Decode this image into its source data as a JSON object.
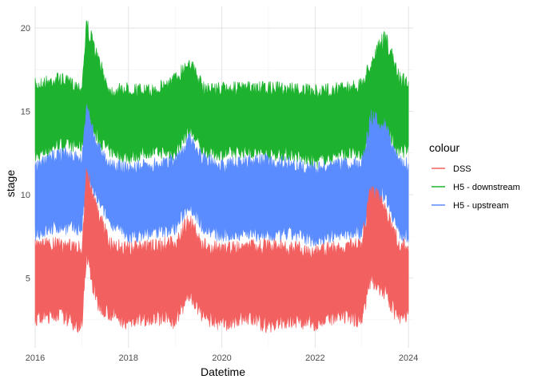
{
  "chart_data": {
    "type": "area",
    "xlabel": "Datetime",
    "ylabel": "stage",
    "xlim": [
      2016,
      2024.1
    ],
    "ylim": [
      0.8,
      21.3
    ],
    "x_ticks": [
      2016,
      2018,
      2020,
      2022,
      2024
    ],
    "x_tick_labels": [
      "2016",
      "2018",
      "2020",
      "2022",
      "2024"
    ],
    "y_ticks": [
      5,
      10,
      15,
      20
    ],
    "y_tick_labels": [
      "5",
      "10",
      "15",
      "20"
    ],
    "grid": true,
    "legend": {
      "title": "colour",
      "position": "right"
    },
    "x": [
      2016.0,
      2016.5,
      2017.0,
      2017.1,
      2017.3,
      2017.6,
      2018.0,
      2018.5,
      2019.0,
      2019.3,
      2019.6,
      2020.0,
      2020.5,
      2021.0,
      2021.5,
      2022.0,
      2022.5,
      2023.0,
      2023.2,
      2023.5,
      2023.8,
      2024.0
    ],
    "series": [
      {
        "name": "H5 - downstream",
        "color": "#1db32e",
        "upper": [
          17.0,
          17.4,
          16.8,
          20.8,
          19.0,
          16.6,
          16.8,
          16.6,
          17.4,
          18.5,
          16.8,
          16.8,
          16.8,
          16.8,
          16.8,
          16.6,
          16.8,
          17.0,
          18.5,
          20.0,
          17.5,
          17.2
        ],
        "lower": [
          11.8,
          12.6,
          12.5,
          14.2,
          13.0,
          12.2,
          11.8,
          12.2,
          12.0,
          13.5,
          12.2,
          12.0,
          12.2,
          12.0,
          12.0,
          11.5,
          12.0,
          12.0,
          12.5,
          13.5,
          12.0,
          12.4
        ]
      },
      {
        "name": "H5 - upstream",
        "color": "#5b8cff",
        "upper": [
          12.0,
          13.0,
          12.5,
          15.9,
          13.5,
          12.2,
          12.0,
          12.2,
          12.5,
          13.8,
          12.6,
          12.2,
          12.4,
          12.5,
          12.3,
          12.0,
          12.2,
          12.4,
          15.2,
          14.6,
          12.5,
          12.2
        ],
        "lower": [
          7.2,
          7.6,
          7.5,
          10.5,
          9.5,
          8.0,
          7.0,
          7.3,
          7.5,
          9.0,
          7.6,
          7.0,
          7.3,
          7.0,
          7.2,
          6.8,
          7.2,
          7.3,
          9.0,
          9.6,
          7.2,
          7.1
        ]
      },
      {
        "name": "DSS",
        "color": "#f36060",
        "upper": [
          7.4,
          7.5,
          7.2,
          12.0,
          10.0,
          7.5,
          7.2,
          7.4,
          7.6,
          9.0,
          7.4,
          7.2,
          7.4,
          7.4,
          7.3,
          7.0,
          7.3,
          7.5,
          11.0,
          9.6,
          7.4,
          7.4
        ],
        "lower": [
          2.0,
          2.4,
          1.5,
          6.0,
          3.0,
          2.4,
          1.8,
          2.2,
          1.9,
          3.5,
          2.2,
          1.7,
          2.2,
          1.6,
          2.0,
          1.8,
          2.2,
          2.0,
          4.5,
          3.5,
          2.0,
          2.4
        ]
      }
    ],
    "legend_entries": [
      {
        "name": "DSS",
        "color": "#f36060"
      },
      {
        "name": "H5 - downstream",
        "color": "#1db32e"
      },
      {
        "name": "H5 - upstream",
        "color": "#5b8cff"
      }
    ]
  }
}
